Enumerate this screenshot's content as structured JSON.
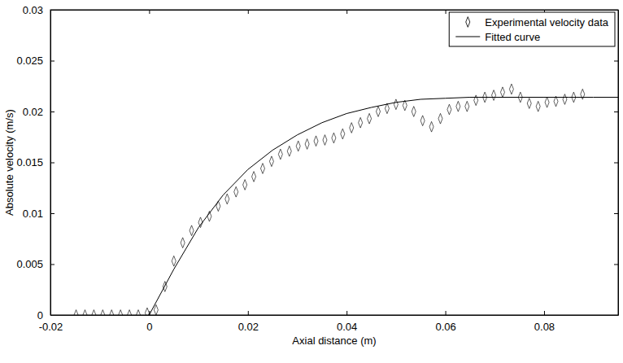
{
  "chart_data": {
    "type": "scatter",
    "x_label": "Axial distance (m)",
    "y_label": "Absolute velocity (m/s)",
    "xlim": [
      -0.02,
      0.095
    ],
    "ylim": [
      0,
      0.03
    ],
    "xticks": [
      -0.02,
      0,
      0.02,
      0.04,
      0.06,
      0.08
    ],
    "yticks": [
      0,
      0.005,
      0.01,
      0.015,
      0.02,
      0.025,
      0.03
    ],
    "grid": false,
    "legend": "upper right",
    "series": [
      {
        "name": "Experimental velocity data",
        "type": "scatter",
        "marker": "diamond",
        "color": "#000000",
        "x": [
          -0.0148,
          -0.013,
          -0.0112,
          -0.0094,
          -0.0076,
          -0.0058,
          -0.004,
          -0.0022,
          -0.0004,
          0.0014,
          0.0032,
          0.005,
          0.0068,
          0.0086,
          0.0104,
          0.0122,
          0.014,
          0.0158,
          0.0176,
          0.0194,
          0.0212,
          0.023,
          0.0248,
          0.0266,
          0.0284,
          0.0302,
          0.032,
          0.0338,
          0.0356,
          0.0374,
          0.0392,
          0.041,
          0.0428,
          0.0446,
          0.0464,
          0.0482,
          0.05,
          0.0518,
          0.0536,
          0.0554,
          0.0572,
          0.059,
          0.0608,
          0.0626,
          0.0644,
          0.0662,
          0.068,
          0.0698,
          0.0716,
          0.0734,
          0.0752,
          0.077,
          0.0788,
          0.0806,
          0.0824,
          0.0842,
          0.086,
          0.0878
        ],
        "values": [
          0,
          0,
          0,
          0,
          0,
          0,
          0,
          0,
          0.0002,
          0.0005,
          0.0028,
          0.0053,
          0.0071,
          0.0083,
          0.0091,
          0.0097,
          0.0107,
          0.0114,
          0.0121,
          0.0128,
          0.0136,
          0.0144,
          0.0151,
          0.0158,
          0.0161,
          0.0166,
          0.0168,
          0.0171,
          0.0172,
          0.0174,
          0.0178,
          0.0184,
          0.0189,
          0.0193,
          0.02,
          0.0203,
          0.0207,
          0.0206,
          0.02,
          0.0191,
          0.0185,
          0.0193,
          0.0202,
          0.0205,
          0.0205,
          0.0211,
          0.0214,
          0.0216,
          0.0219,
          0.0222,
          0.0214,
          0.0208,
          0.0205,
          0.0209,
          0.021,
          0.0212,
          0.0214,
          0.0217
        ]
      },
      {
        "name": "Fitted curve",
        "type": "line",
        "line_style": "solid",
        "color": "#000000",
        "x": [
          0,
          0.005,
          0.01,
          0.015,
          0.02,
          0.025,
          0.03,
          0.035,
          0.04,
          0.045,
          0.05,
          0.055,
          0.06,
          0.065,
          0.07,
          0.075,
          0.08,
          0.085,
          0.09,
          0.095
        ],
        "values": [
          0,
          0.0045,
          0.0086,
          0.0118,
          0.0143,
          0.0162,
          0.0177,
          0.0189,
          0.0198,
          0.0204,
          0.0209,
          0.0212,
          0.0213,
          0.0214,
          0.0214,
          0.0214,
          0.0214,
          0.0214,
          0.0214,
          0.0214
        ]
      }
    ]
  }
}
